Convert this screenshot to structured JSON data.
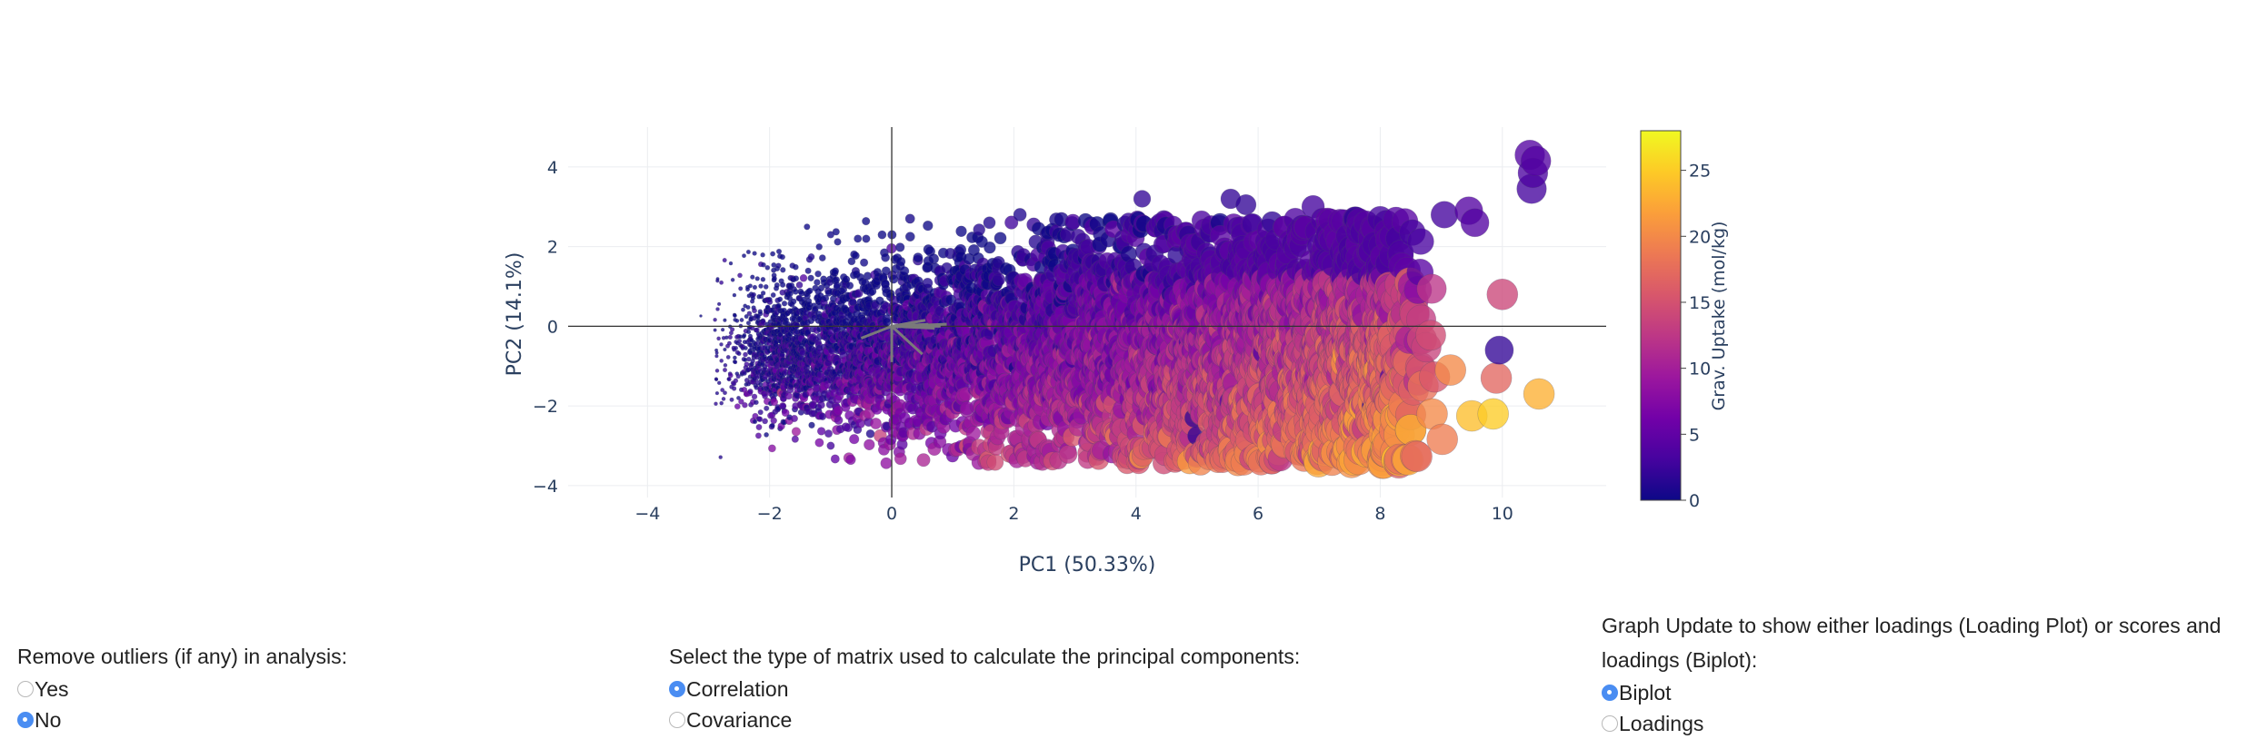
{
  "chart_data": {
    "type": "scatter",
    "title": "",
    "xlabel": "PC1 (50.33%)",
    "ylabel": "PC2 (14.1%)",
    "xlim": [
      -5.3,
      11.7
    ],
    "ylim": [
      -4.3,
      5.0
    ],
    "x_ticks": [
      -4,
      -2,
      0,
      2,
      4,
      6,
      8,
      10
    ],
    "y_ticks": [
      -4,
      -2,
      0,
      2,
      4
    ],
    "x_tick_labels": [
      "−4",
      "−2",
      "0",
      "2",
      "4",
      "6",
      "8",
      "10"
    ],
    "y_tick_labels": [
      "−4",
      "−2",
      "0",
      "2",
      "4"
    ],
    "grid": true,
    "zero_lines": true,
    "colorbar": {
      "title": "Grav. Uptake (mol/kg)",
      "range": [
        0,
        28
      ],
      "ticks": [
        0,
        5,
        10,
        15,
        20,
        25
      ],
      "colorscale": "plasma"
    },
    "series": [
      {
        "type": "scores",
        "points": [
          [
            10.45,
            4.3,
            4
          ],
          [
            10.55,
            4.15,
            4
          ],
          [
            10.5,
            3.85,
            3.5
          ],
          [
            10.48,
            3.45,
            3
          ],
          [
            9.05,
            2.8,
            3
          ],
          [
            9.45,
            2.9,
            4
          ],
          [
            9.55,
            2.6,
            4
          ],
          [
            8.1,
            2.6,
            3
          ],
          [
            8.3,
            2.2,
            3
          ],
          [
            8.0,
            2.7,
            3
          ],
          [
            7.6,
            2.7,
            2
          ],
          [
            6.9,
            3.0,
            3
          ],
          [
            4.1,
            3.2,
            2
          ],
          [
            5.55,
            3.2,
            2
          ],
          [
            5.8,
            3.05,
            2
          ],
          [
            2.1,
            2.8,
            1
          ],
          [
            1.6,
            2.6,
            1
          ],
          [
            0.3,
            2.7,
            0.5
          ],
          [
            -1.0,
            2.3,
            0.3
          ],
          [
            9.95,
            -0.6,
            2
          ],
          [
            10.6,
            -1.7,
            23
          ],
          [
            9.85,
            -2.2,
            25
          ],
          [
            9.5,
            -2.25,
            24
          ],
          [
            9.9,
            -1.3,
            17
          ],
          [
            10.0,
            0.8,
            14
          ],
          [
            8.85,
            -2.2,
            20
          ],
          [
            8.7,
            -1.5,
            18
          ],
          [
            8.15,
            1.0,
            15
          ],
          [
            8.0,
            -0.2,
            18
          ],
          [
            7.6,
            -2.55,
            22
          ],
          [
            7.1,
            -2.75,
            18
          ],
          [
            8.5,
            -2.6,
            23
          ],
          [
            9.15,
            -1.1,
            20
          ],
          [
            8.2,
            -1.3,
            4
          ],
          [
            7.9,
            -2.0,
            2
          ],
          [
            4.95,
            -2.3,
            2
          ],
          [
            5.0,
            -2.75,
            2
          ],
          [
            4.6,
            -2.45,
            2
          ],
          [
            5.4,
            -2.3,
            2
          ],
          [
            -0.35,
            -2.7,
            1
          ],
          [
            -1.0,
            -3.0,
            3
          ]
        ]
      },
      {
        "type": "loadings",
        "vectors": [
          [
            0.9,
            0.05
          ],
          [
            0.8,
            0.0
          ],
          [
            0.7,
            -0.05
          ],
          [
            0.55,
            0.15
          ],
          [
            0.3,
            0.05
          ],
          [
            -0.5,
            -0.3
          ],
          [
            0.5,
            -0.7
          ],
          [
            0.0,
            -0.9
          ],
          [
            0.6,
            0.05
          ]
        ]
      }
    ]
  },
  "controls": {
    "outliers": {
      "label": "Remove outliers (if any) in analysis:",
      "options": [
        "Yes",
        "No"
      ],
      "selected": "No"
    },
    "matrix": {
      "label": "Select the type of matrix used to calculate the principal components:",
      "options": [
        "Correlation",
        "Covariance"
      ],
      "selected": "Correlation"
    },
    "graph": {
      "label": "Graph Update to show either loadings (Loading Plot) or scores and loadings (Biplot):",
      "options": [
        "Biplot",
        "Loadings"
      ],
      "selected": "Biplot"
    }
  },
  "colors": {
    "accent": "#4a8df2",
    "grid": "#ebedf0",
    "zero_line": "#444444"
  }
}
